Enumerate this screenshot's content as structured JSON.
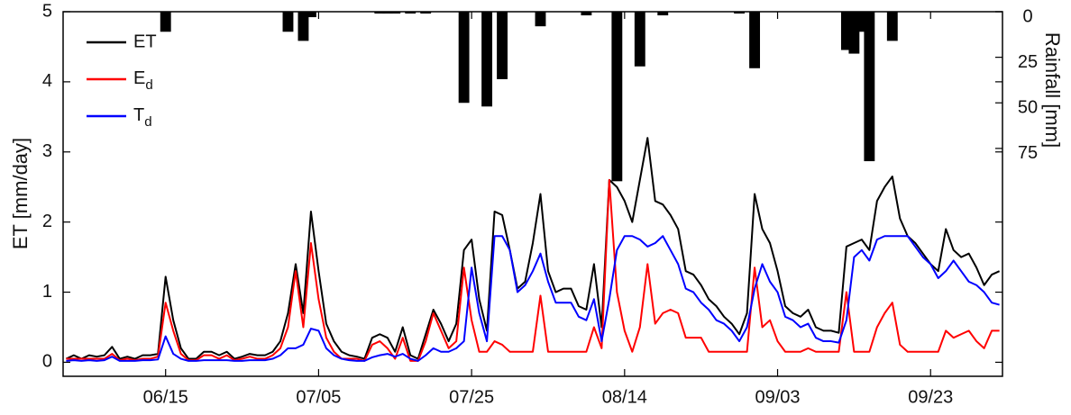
{
  "chart_data": {
    "type": "line",
    "ylabel": "ET [mm/day]",
    "y2label": "Rainfall [mm]",
    "x": [
      "06/02",
      "06/03",
      "06/04",
      "06/05",
      "06/06",
      "06/07",
      "06/08",
      "06/09",
      "06/10",
      "06/11",
      "06/12",
      "06/13",
      "06/14",
      "06/15",
      "06/16",
      "06/17",
      "06/18",
      "06/19",
      "06/20",
      "06/21",
      "06/22",
      "06/23",
      "06/24",
      "06/25",
      "06/26",
      "06/27",
      "06/28",
      "06/29",
      "06/30",
      "07/01",
      "07/02",
      "07/03",
      "07/04",
      "07/05",
      "07/06",
      "07/07",
      "07/08",
      "07/09",
      "07/10",
      "07/11",
      "07/12",
      "07/13",
      "07/14",
      "07/15",
      "07/16",
      "07/17",
      "07/18",
      "07/19",
      "07/20",
      "07/21",
      "07/22",
      "07/23",
      "07/24",
      "07/25",
      "07/26",
      "07/27",
      "07/28",
      "07/29",
      "07/30",
      "07/31",
      "08/01",
      "08/02",
      "08/03",
      "08/04",
      "08/05",
      "08/06",
      "08/07",
      "08/08",
      "08/09",
      "08/10",
      "08/11",
      "08/12",
      "08/13",
      "08/14",
      "08/15",
      "08/16",
      "08/17",
      "08/18",
      "08/19",
      "08/20",
      "08/21",
      "08/22",
      "08/23",
      "08/24",
      "08/25",
      "08/26",
      "08/27",
      "08/28",
      "08/29",
      "08/30",
      "08/31",
      "09/01",
      "09/02",
      "09/03",
      "09/04",
      "09/05",
      "09/06",
      "09/07",
      "09/08",
      "09/09",
      "09/10",
      "09/11",
      "09/12",
      "09/13",
      "09/14",
      "09/15",
      "09/16",
      "09/17",
      "09/18",
      "09/19",
      "09/20",
      "09/21",
      "09/22",
      "09/23",
      "09/24",
      "09/25",
      "09/26",
      "09/27",
      "09/28",
      "09/29",
      "09/30",
      "10/01",
      "10/02"
    ],
    "xticks": [
      "06/15",
      "07/05",
      "07/25",
      "08/14",
      "09/03",
      "09/23"
    ],
    "ylim": [
      -0.2,
      5
    ],
    "yticks": [
      0,
      1,
      2,
      3,
      4,
      5
    ],
    "y2lim": [
      0,
      200
    ],
    "y2ticks": [
      0,
      25,
      50,
      75
    ],
    "y2_reversed": true,
    "legend": "upper left",
    "series": [
      {
        "name": "ET",
        "color": "#000000",
        "values": [
          0.05,
          0.1,
          0.05,
          0.1,
          0.08,
          0.1,
          0.22,
          0.05,
          0.08,
          0.05,
          0.1,
          0.1,
          0.12,
          1.22,
          0.6,
          0.2,
          0.05,
          0.05,
          0.15,
          0.15,
          0.1,
          0.15,
          0.05,
          0.08,
          0.12,
          0.1,
          0.1,
          0.15,
          0.3,
          0.7,
          1.4,
          0.7,
          2.15,
          1.3,
          0.55,
          0.3,
          0.15,
          0.1,
          0.08,
          0.05,
          0.35,
          0.4,
          0.35,
          0.15,
          0.5,
          0.1,
          0.05,
          0.4,
          0.75,
          0.55,
          0.3,
          0.55,
          1.6,
          1.75,
          0.9,
          0.45,
          2.15,
          2.1,
          1.6,
          1.05,
          1.15,
          1.7,
          2.4,
          1.3,
          1.0,
          1.05,
          1.05,
          0.8,
          0.75,
          1.4,
          0.5,
          2.6,
          2.5,
          2.3,
          2.0,
          2.6,
          3.2,
          2.3,
          2.25,
          2.1,
          1.9,
          1.3,
          1.25,
          1.1,
          0.9,
          0.8,
          0.65,
          0.55,
          0.4,
          0.7,
          2.4,
          1.9,
          1.7,
          1.3,
          0.8,
          0.7,
          0.65,
          0.75,
          0.5,
          0.45,
          0.45,
          0.42,
          1.65,
          1.7,
          1.75,
          1.6,
          2.3,
          2.5,
          2.65,
          2.05,
          1.8,
          1.7,
          1.55,
          1.4,
          1.3,
          1.9,
          1.6,
          1.5,
          1.55,
          1.35,
          1.1,
          1.25,
          1.3
        ]
      },
      {
        "name": "Ed",
        "color": "#ff0000",
        "values": [
          0.05,
          0.05,
          0.05,
          0.05,
          0.05,
          0.05,
          0.12,
          0.03,
          0.05,
          0.03,
          0.05,
          0.05,
          0.08,
          0.85,
          0.45,
          0.12,
          0.03,
          0.03,
          0.1,
          0.1,
          0.05,
          0.1,
          0.03,
          0.05,
          0.08,
          0.05,
          0.05,
          0.1,
          0.2,
          0.5,
          1.3,
          0.5,
          1.7,
          0.9,
          0.35,
          0.15,
          0.05,
          0.05,
          0.05,
          0.02,
          0.25,
          0.3,
          0.2,
          0.05,
          0.35,
          0.02,
          0.02,
          0.3,
          0.7,
          0.45,
          0.2,
          0.3,
          1.35,
          0.6,
          0.15,
          0.15,
          0.3,
          0.25,
          0.15,
          0.15,
          0.15,
          0.15,
          0.95,
          0.15,
          0.15,
          0.15,
          0.15,
          0.15,
          0.15,
          0.5,
          0.2,
          2.6,
          1.0,
          0.45,
          0.15,
          0.5,
          1.4,
          0.55,
          0.7,
          0.75,
          0.7,
          0.35,
          0.35,
          0.35,
          0.15,
          0.15,
          0.15,
          0.15,
          0.15,
          0.15,
          1.35,
          0.5,
          0.6,
          0.3,
          0.15,
          0.15,
          0.15,
          0.2,
          0.15,
          0.15,
          0.15,
          0.15,
          1.0,
          0.15,
          0.15,
          0.15,
          0.5,
          0.7,
          0.85,
          0.25,
          0.15,
          0.15,
          0.15,
          0.15,
          0.15,
          0.45,
          0.35,
          0.4,
          0.45,
          0.3,
          0.2,
          0.45,
          0.45
        ]
      },
      {
        "name": "Td",
        "color": "#0000ff",
        "values": [
          0.02,
          0.03,
          0.02,
          0.03,
          0.02,
          0.03,
          0.08,
          0.02,
          0.02,
          0.02,
          0.03,
          0.03,
          0.04,
          0.37,
          0.12,
          0.05,
          0.02,
          0.02,
          0.03,
          0.03,
          0.03,
          0.03,
          0.02,
          0.02,
          0.03,
          0.03,
          0.03,
          0.05,
          0.1,
          0.2,
          0.2,
          0.25,
          0.48,
          0.45,
          0.2,
          0.1,
          0.05,
          0.03,
          0.02,
          0.02,
          0.07,
          0.1,
          0.12,
          0.08,
          0.12,
          0.05,
          0.02,
          0.1,
          0.2,
          0.15,
          0.15,
          0.2,
          0.3,
          1.35,
          0.7,
          0.3,
          1.8,
          1.8,
          1.6,
          1.0,
          1.1,
          1.3,
          1.55,
          1.15,
          0.85,
          0.85,
          0.85,
          0.65,
          0.6,
          0.9,
          0.3,
          0.9,
          1.6,
          1.8,
          1.8,
          1.75,
          1.65,
          1.7,
          1.8,
          1.6,
          1.4,
          1.05,
          1.0,
          0.85,
          0.75,
          0.6,
          0.55,
          0.45,
          0.3,
          0.5,
          1.05,
          1.4,
          1.15,
          1.0,
          0.65,
          0.6,
          0.5,
          0.55,
          0.35,
          0.3,
          0.3,
          0.28,
          0.6,
          1.5,
          1.6,
          1.45,
          1.75,
          1.8,
          1.8,
          1.8,
          1.8,
          1.65,
          1.5,
          1.4,
          1.2,
          1.3,
          1.45,
          1.3,
          1.15,
          1.1,
          1.0,
          0.85,
          0.82
        ]
      },
      {
        "type": "bar",
        "axis": "y2",
        "color": "#000000",
        "values": [
          0,
          0,
          0,
          0,
          0,
          0,
          0,
          0,
          0,
          0,
          0,
          0,
          0,
          11,
          0,
          0,
          0,
          0,
          0,
          0,
          0,
          0,
          0,
          0,
          0,
          0,
          0,
          0,
          0,
          11,
          0,
          16,
          3,
          0,
          0,
          0,
          0,
          0,
          0,
          0,
          0,
          1,
          1,
          1,
          0,
          1,
          0,
          1,
          0,
          0,
          0,
          0,
          50,
          0,
          0,
          52,
          0,
          37,
          0,
          0,
          0,
          0,
          8,
          0,
          0,
          0,
          0,
          0,
          2,
          0,
          0,
          0,
          93,
          0,
          0,
          30,
          0,
          0,
          2,
          0,
          0,
          0,
          0,
          0,
          0,
          0,
          0,
          0,
          1,
          0,
          31,
          0,
          0,
          0,
          0,
          0,
          0,
          0,
          0,
          0,
          0,
          0,
          21,
          23,
          11,
          82,
          0,
          0,
          16,
          0,
          0,
          0,
          0,
          0,
          0,
          0,
          0,
          0,
          0,
          0,
          0,
          0,
          0
        ]
      }
    ]
  }
}
